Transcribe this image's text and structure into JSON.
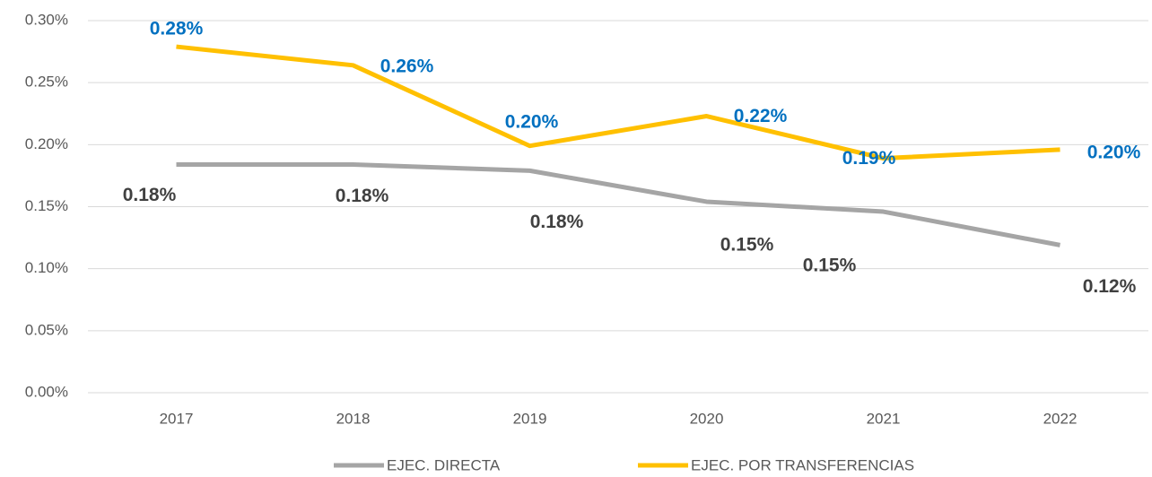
{
  "chart_data": {
    "type": "line",
    "categories": [
      "2017",
      "2018",
      "2019",
      "2020",
      "2021",
      "2022"
    ],
    "series": [
      {
        "name": "EJEC. DIRECTA",
        "color": "#a5a5a5",
        "values": [
          0.184,
          0.184,
          0.179,
          0.154,
          0.146,
          0.119
        ],
        "value_labels": [
          "0.18%",
          "0.18%",
          "0.18%",
          "0.15%",
          "0.15%",
          "0.12%"
        ],
        "label_color": "#404040"
      },
      {
        "name": "EJEC. POR TRANSFERENCIAS",
        "color": "#ffc000",
        "values": [
          0.279,
          0.264,
          0.199,
          0.223,
          0.189,
          0.196
        ],
        "value_labels": [
          "0.28%",
          "0.26%",
          "0.20%",
          "0.22%",
          "0.19%",
          "0.20%"
        ],
        "label_color": "#0070c0"
      }
    ],
    "ylim": [
      0,
      0.3
    ],
    "yticks": [
      {
        "value": 0,
        "label": "0.00%"
      },
      {
        "value": 0.05,
        "label": "0.05%"
      },
      {
        "value": 0.1,
        "label": "0.10%"
      },
      {
        "value": 0.15,
        "label": "0.15%"
      },
      {
        "value": 0.2,
        "label": "0.20%"
      },
      {
        "value": 0.25,
        "label": "0.25%"
      },
      {
        "value": 0.3,
        "label": "0.30%"
      }
    ],
    "grid": true,
    "legend": "bottom"
  }
}
